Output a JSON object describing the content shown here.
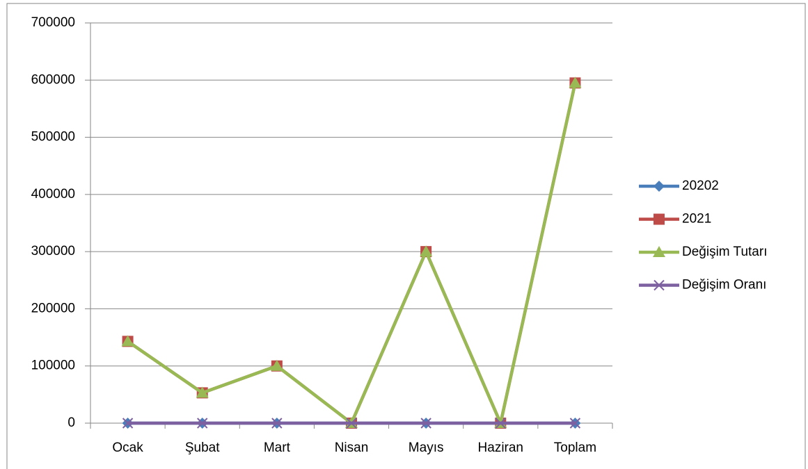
{
  "chart_data": {
    "type": "line",
    "categories": [
      "Ocak",
      "Şubat",
      "Mart",
      "Nisan",
      "Mayıs",
      "Haziran",
      "Toplam"
    ],
    "series": [
      {
        "name": "20202",
        "color": "#4a7ebb",
        "marker": "diamond",
        "values": [
          0,
          0,
          0,
          0,
          0,
          0,
          0
        ]
      },
      {
        "name": "2021",
        "color": "#be4b48",
        "marker": "square",
        "values": [
          143000,
          53000,
          100000,
          0,
          300000,
          0,
          595000
        ]
      },
      {
        "name": "Değişim Tutarı",
        "color": "#98b954",
        "marker": "triangle",
        "values": [
          143000,
          53000,
          100000,
          0,
          300000,
          0,
          595000
        ]
      },
      {
        "name": "Değişim Oranı",
        "color": "#7d60a0",
        "marker": "x",
        "values": [
          0,
          0,
          0,
          0,
          0,
          0,
          0
        ]
      }
    ],
    "ylim": [
      0,
      700000
    ],
    "yticks": [
      0,
      100000,
      200000,
      300000,
      400000,
      500000,
      600000,
      700000
    ],
    "grid": true,
    "legend": "right"
  }
}
